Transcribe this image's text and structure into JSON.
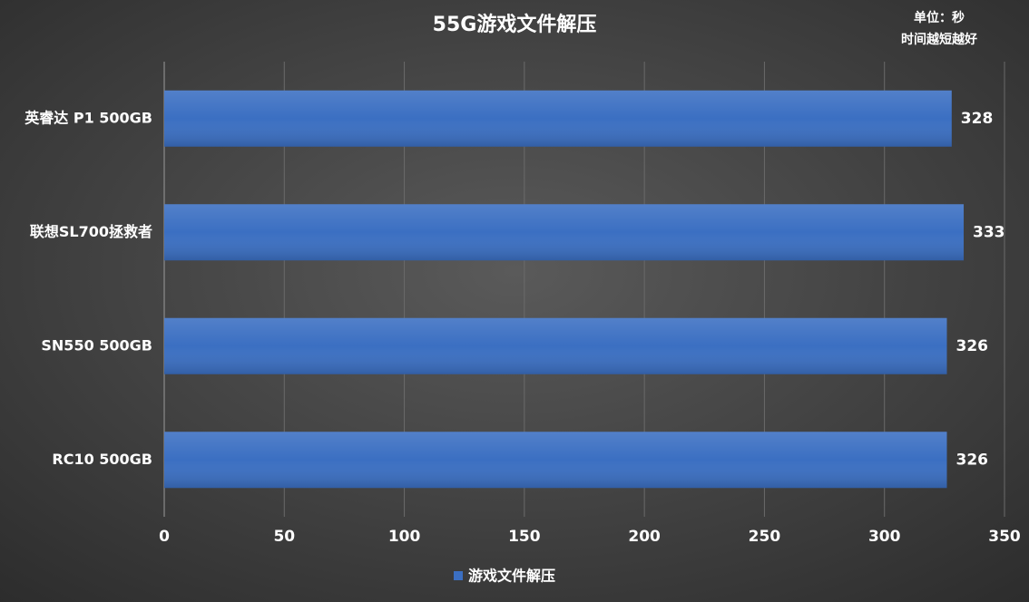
{
  "chart_data": {
    "type": "bar",
    "orientation": "horizontal",
    "title": "55G游戏文件解压",
    "annotations": [
      "单位：秒",
      "时间越短越好"
    ],
    "categories": [
      "英睿达 P1 500GB",
      "联想SL700拯救者",
      "SN550 500GB",
      "RC10 500GB"
    ],
    "series": [
      {
        "name": "游戏文件解压",
        "color": "#3b6fc2",
        "values": [
          328,
          333,
          326,
          326
        ]
      }
    ],
    "xlim": [
      0,
      350
    ],
    "xticks": [
      0,
      50,
      100,
      150,
      200,
      250,
      300,
      350
    ],
    "grid": true,
    "legend": "bottom"
  }
}
